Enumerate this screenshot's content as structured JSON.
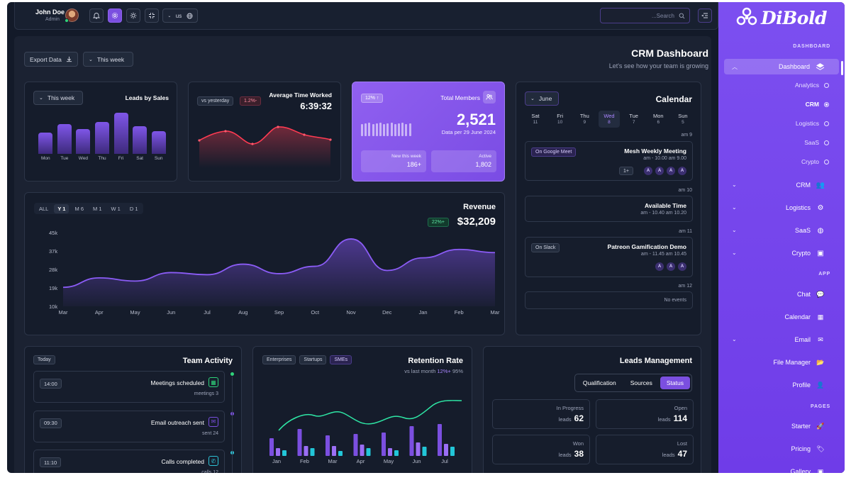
{
  "topbar": {
    "user_name": "John Doe",
    "user_role": "Admin",
    "lang": "us",
    "search_placeholder": "...Search"
  },
  "header": {
    "export_label": "Export Data",
    "period_label": "This week",
    "title": "CRM Dashboard",
    "subtitle": "Let's see how your team is growing"
  },
  "leads_by_sales": {
    "title": "Leads by Sales",
    "filter": "This week",
    "days": [
      "Mon",
      "Tue",
      "Wed",
      "Thu",
      "Fri",
      "Sat",
      "Sun"
    ],
    "values": [
      0.52,
      0.72,
      0.6,
      0.78,
      1.0,
      0.68,
      0.56
    ]
  },
  "avg_time": {
    "title": "Average Time Worked",
    "compare": "vs yesterday",
    "change": "1.2%-",
    "value": "6:39:32"
  },
  "members": {
    "badge": "12% ↑",
    "title": "Total Members",
    "value": "2,521",
    "date": "Data per 29 June 2024",
    "new_label": "New this week",
    "new_value": "186+",
    "active_label": "Active",
    "active_value": "1,802"
  },
  "calendar": {
    "title": "Calendar",
    "month": "June",
    "days": [
      {
        "name": "Sat",
        "num": "11"
      },
      {
        "name": "Fri",
        "num": "10"
      },
      {
        "name": "Thu",
        "num": "9"
      },
      {
        "name": "Wed",
        "num": "8"
      },
      {
        "name": "Tue",
        "num": "7"
      },
      {
        "name": "Mon",
        "num": "6"
      },
      {
        "name": "Sun",
        "num": "5"
      }
    ],
    "slot1": "am 9",
    "ev1_tag": "On Google Meet",
    "ev1_title": "Mesh Weekly Meeting",
    "ev1_time": "am - 10.00 am 9.00",
    "ev1_more": "1+",
    "slot2": "am 10",
    "ev2_title": "Available Time",
    "ev2_time": "am - 10.40 am 10.20",
    "slot3": "am 11",
    "ev3_tag": "On Slack",
    "ev3_title": "Patreon Gamification Demo",
    "ev3_time": "am - 11.45 am 10.45",
    "slot4": "am 12",
    "no_events": "No events",
    "avatar_letter": "A"
  },
  "revenue": {
    "title": "Revenue",
    "tabs": [
      "ALL",
      "Y 1",
      "M 6",
      "M 1",
      "W 1",
      "D 1"
    ],
    "badge": "22%+",
    "value": "$32,209"
  },
  "chart_data": {
    "type": "area",
    "title": "Revenue",
    "x": [
      "Mar",
      "Apr",
      "May",
      "Jun",
      "Jul",
      "Aug",
      "Sep",
      "Oct",
      "Nov",
      "Dec",
      "Jan",
      "Feb",
      "Mar"
    ],
    "y_ticks": [
      "45k",
      "37k",
      "28k",
      "19k",
      "10k"
    ],
    "ylim": [
      10,
      45
    ],
    "values": [
      19,
      23.5,
      22,
      26,
      25,
      30,
      25.5,
      29,
      42,
      27,
      33,
      37,
      35.5
    ]
  },
  "team_activity": {
    "title": "Team Activity",
    "filter": "Today",
    "items": [
      {
        "time": "14:00",
        "label": "Meetings scheduled",
        "sub": "meetings 3"
      },
      {
        "time": "09:30",
        "label": "Email outreach sent",
        "sub": "sent 24"
      },
      {
        "time": "11:10",
        "label": "Calls completed",
        "sub": "calls 12"
      }
    ]
  },
  "retention": {
    "title": "Retention Rate",
    "tabs": [
      "Enterprises",
      "Startups",
      "SMEs"
    ],
    "compare_prefix": "vs last month",
    "compare_change": "12%+",
    "compare_value": "95%",
    "months": [
      "Jan",
      "Feb",
      "Mar",
      "Apr",
      "May",
      "Jun",
      "Jul"
    ]
  },
  "leads_mgmt": {
    "title": "Leads Management",
    "tabs": [
      "Qualification",
      "Sources",
      "Status"
    ],
    "leads_word": "leads",
    "stats": [
      {
        "label": "In Progress",
        "value": "62"
      },
      {
        "label": "Open",
        "value": "114"
      },
      {
        "label": "Won",
        "value": "38"
      },
      {
        "label": "Lost",
        "value": "47"
      }
    ]
  },
  "sidebar": {
    "logo": "DiBold",
    "sec_dashboard": "DASHBOARD",
    "dashboard": "Dashboard",
    "sub": [
      "Analytics",
      "CRM",
      "Logistics",
      "SaaS",
      "Crypto"
    ],
    "groups": [
      "CRM",
      "Logistics",
      "SaaS",
      "Crypto"
    ],
    "sec_app": "APP",
    "apps": [
      "Chat",
      "Calendar",
      "Email",
      "File Manager",
      "Profile"
    ],
    "sec_pages": "PAGES",
    "pages": [
      "Starter",
      "Pricing",
      "Gallery"
    ]
  }
}
